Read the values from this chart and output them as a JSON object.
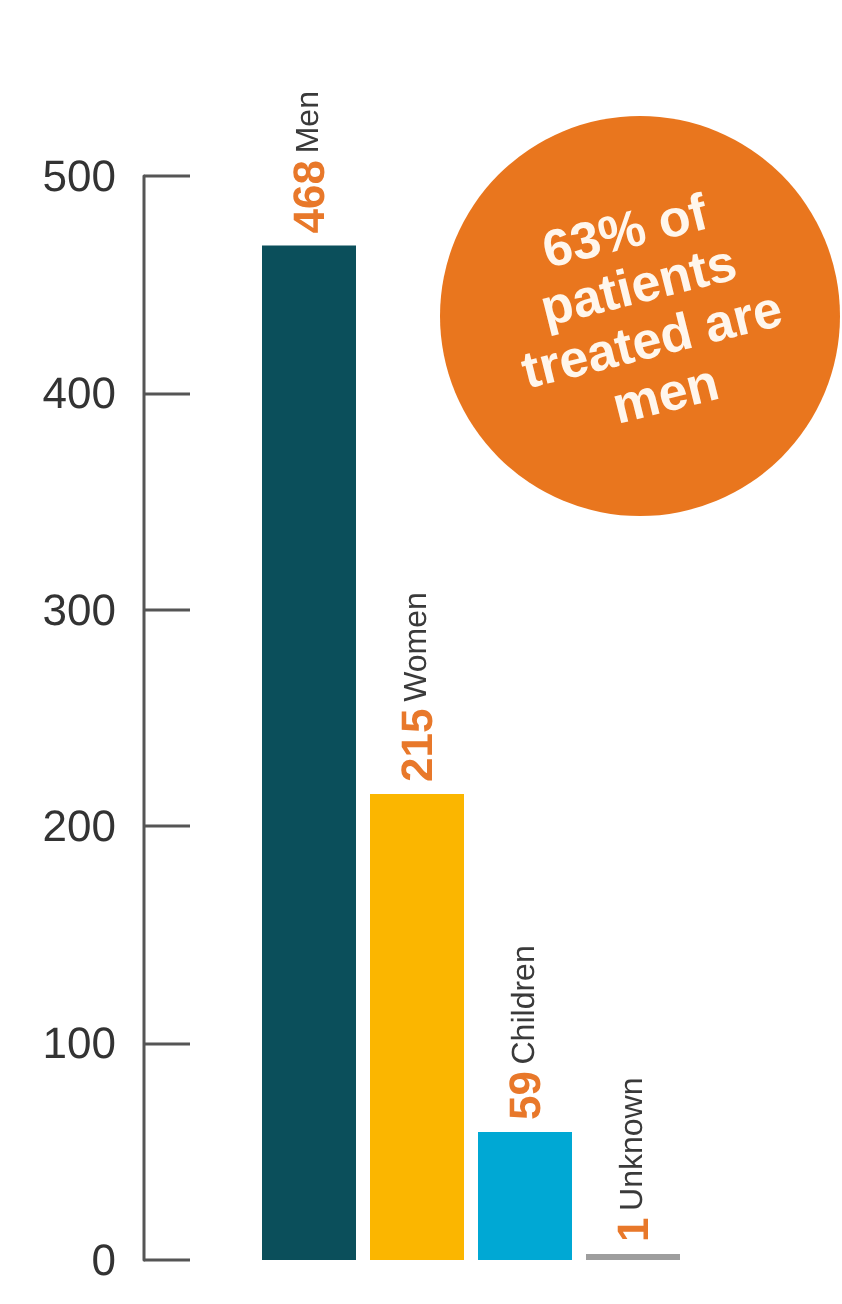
{
  "chart_data": {
    "type": "bar",
    "categories": [
      "Men",
      "Women",
      "Children",
      "Unknown"
    ],
    "values": [
      468,
      215,
      59,
      1
    ],
    "colors": [
      "#0b4f5b",
      "#fbb600",
      "#00a8d4",
      "#9e9e9e"
    ],
    "ylim": [
      0,
      500
    ],
    "yticks": [
      0,
      100,
      200,
      300,
      400,
      500
    ],
    "grid": false,
    "tick_labels": "y",
    "data_labels": true,
    "annotations": [
      "63% of patients treated are men"
    ]
  }
}
